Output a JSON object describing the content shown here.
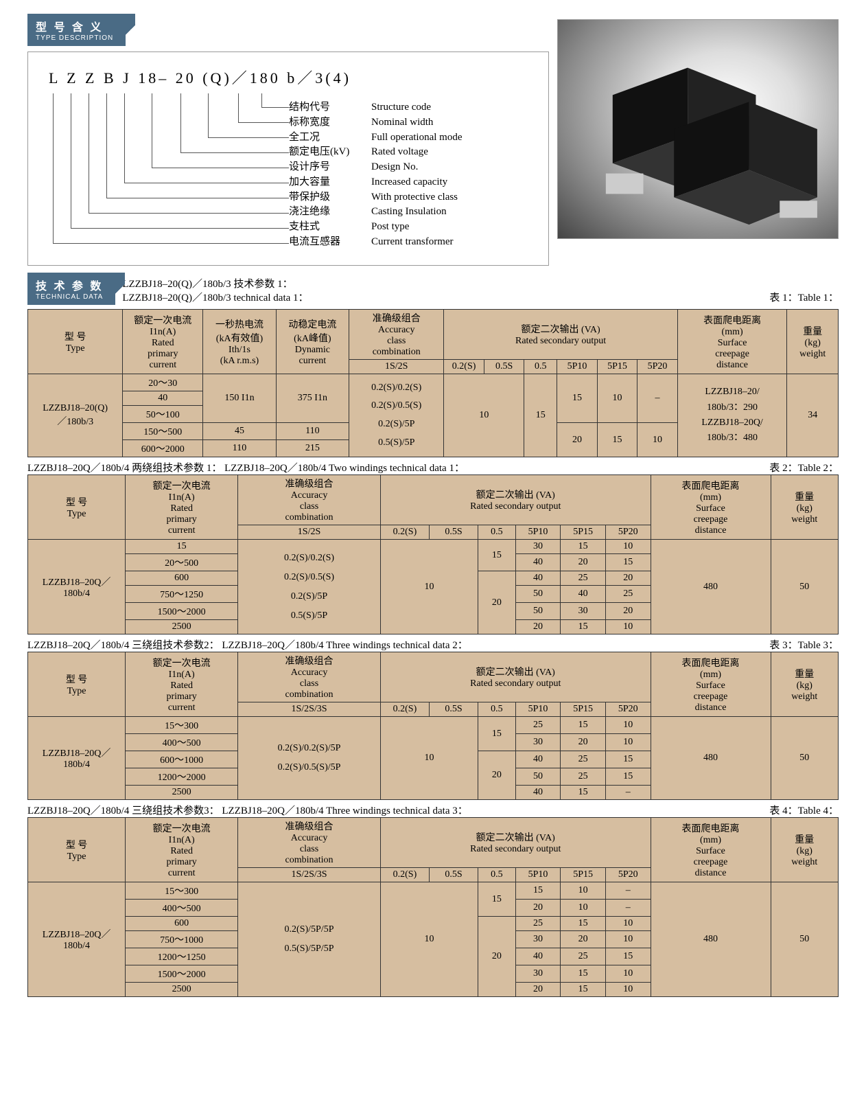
{
  "typeDescription": {
    "header_cn": "型 号 含 义",
    "header_en": "TYPE DESCRIPTION",
    "model": "L  Z  Z  B  J   18– 20  (Q)／180  b／3(4)",
    "rows": [
      {
        "cn": "结构代号",
        "en": "Structure code"
      },
      {
        "cn": "标称宽度",
        "en": "Nominal width"
      },
      {
        "cn": "全工况",
        "en": "Full operational mode"
      },
      {
        "cn": "额定电压(kV)",
        "en": "Rated voltage"
      },
      {
        "cn": "设计序号",
        "en": "Design No."
      },
      {
        "cn": "加大容量",
        "en": "Increased capacity"
      },
      {
        "cn": "带保护级",
        "en": "With protective class"
      },
      {
        "cn": "浇注绝缘",
        "en": "Casting Insulation"
      },
      {
        "cn": "支柱式",
        "en": "Post type"
      },
      {
        "cn": "电流互感器",
        "en": "Current transformer"
      }
    ]
  },
  "techHeader": {
    "cn": "技 术 参 数",
    "en": "TECHNICAL DATA",
    "line1": "LZZBJ18–20(Q)／180b/3 技术参数 1：",
    "line2": "LZZBJ18–20(Q)／180b/3 technical data  1：",
    "right": "表 1：Table 1："
  },
  "cols": {
    "type": "型   号\nType",
    "primary": "额定一次电流\nI1n(A)\nRated\nprimary\ncurrent",
    "thermal": "一秒热电流\n(kA有效值)\nIth/1s\n(kA r.m.s)",
    "dynamic": "动稳定电流\n(kA峰值)\nDynamic\ncurrent",
    "accuracy": "准确级组合\nAccuracy\nclass\ncombination",
    "secondary": "额定二次输出 (VA)\nRated secondary output",
    "creep": "表面爬电距离\n(mm)\nSurface\ncreepage\ndistance",
    "weight": "重量\n(kg)\nweight",
    "s12": "1S/2S",
    "s123": "1S/2S/3S",
    "h02s": "0.2(S)",
    "h05s": "0.5S",
    "h05": "0.5",
    "p10": "5P10",
    "p15": "5P15",
    "p20": "5P20"
  },
  "table1": {
    "type": "LZZBJ18–20(Q)\n／180b/3",
    "acc": "0.2(S)/0.2(S)\n0.2(S)/0.5(S)\n0.2(S)/5P\n0.5(S)/5P",
    "creep": "LZZBJ18–20/\n180b/3：290\nLZZBJ18–20Q/\n180b/3：480",
    "weight": "34",
    "rows": [
      {
        "p": "20～30",
        "t": "150 I1n",
        "d": "375 I1n",
        "v10": "10",
        "v05": "15",
        "v5p10": "15",
        "v5p15": "10",
        "v5p20": "–"
      },
      {
        "p": "40"
      },
      {
        "p": "50～100"
      },
      {
        "p": "150～500",
        "t": "45",
        "d": "110",
        "v5p10": "20",
        "v5p15": "15",
        "v5p20": "10"
      },
      {
        "p": "600～2000",
        "t": "110",
        "d": "215"
      }
    ]
  },
  "caption2": {
    "left": "LZZBJ18–20Q／180b/4 两绕组技术参数 1：  LZZBJ18–20Q／180b/4 Two windings technical data  1：",
    "right": "表 2：Table 2："
  },
  "table2": {
    "type": "LZZBJ18–20Q／\n180b/4",
    "acc": "0.2(S)/0.2(S)\n0.2(S)/0.5(S)\n0.2(S)/5P\n0.5(S)/5P",
    "creep": "480",
    "weight": "50",
    "rows": [
      {
        "p": "15",
        "v10": "10",
        "v05": "15",
        "p10": "30",
        "p15": "15",
        "p20": "10"
      },
      {
        "p": "20～500",
        "p10": "40",
        "p15": "20",
        "p20": "15"
      },
      {
        "p": "600",
        "v05b": "20",
        "p10": "40",
        "p15": "25",
        "p20": "20"
      },
      {
        "p": "750～1250",
        "p10": "50",
        "p15": "40",
        "p20": "25"
      },
      {
        "p": "1500～2000",
        "p10": "50",
        "p15": "30",
        "p20": "20"
      },
      {
        "p": "2500",
        "p10": "20",
        "p15": "15",
        "p20": "10"
      }
    ]
  },
  "caption3": {
    "left": "LZZBJ18–20Q／180b/4 三绕组技术参数2：  LZZBJ18–20Q／180b/4 Three windings technical data 2：",
    "right": "表 3：Table 3："
  },
  "table3": {
    "type": "LZZBJ18–20Q／\n180b/4",
    "acc": "0.2(S)/0.2(S)/5P\n0.2(S)/0.5(S)/5P",
    "creep": "480",
    "weight": "50",
    "rows": [
      {
        "p": "15～300",
        "v10": "10",
        "v05": "15",
        "p10": "25",
        "p15": "15",
        "p20": "10"
      },
      {
        "p": "400～500",
        "p10": "30",
        "p15": "20",
        "p20": "10"
      },
      {
        "p": "600～1000",
        "v05b": "20",
        "p10": "40",
        "p15": "25",
        "p20": "15"
      },
      {
        "p": "1200～2000",
        "p10": "50",
        "p15": "25",
        "p20": "15"
      },
      {
        "p": "2500",
        "p10": "40",
        "p15": "15",
        "p20": "–"
      }
    ]
  },
  "caption4": {
    "left": "LZZBJ18–20Q／180b/4 三绕组技术参数3：  LZZBJ18–20Q／180b/4 Three windings technical data 3：",
    "right": "表 4：Table 4："
  },
  "table4": {
    "type": "LZZBJ18–20Q／\n180b/4",
    "acc": "0.2(S)/5P/5P\n0.5(S)/5P/5P",
    "creep": "480",
    "weight": "50",
    "rows": [
      {
        "p": "15～300",
        "v10": "10",
        "v05": "15",
        "p10": "15",
        "p15": "10",
        "p20": "–"
      },
      {
        "p": "400～500",
        "p10": "20",
        "p15": "10",
        "p20": "–"
      },
      {
        "p": "600",
        "v05b": "20",
        "p10": "25",
        "p15": "15",
        "p20": "10"
      },
      {
        "p": "750～1000",
        "p10": "30",
        "p15": "20",
        "p20": "10"
      },
      {
        "p": "1200～1250",
        "p10": "40",
        "p15": "25",
        "p20": "15"
      },
      {
        "p": "1500～2000",
        "p10": "30",
        "p15": "15",
        "p20": "10"
      },
      {
        "p": "2500",
        "p10": "20",
        "p15": "15",
        "p20": "10"
      }
    ]
  },
  "colors": {
    "header_bg": "#d6bea0",
    "border": "#333333",
    "section_bg": "#4a6b85"
  }
}
